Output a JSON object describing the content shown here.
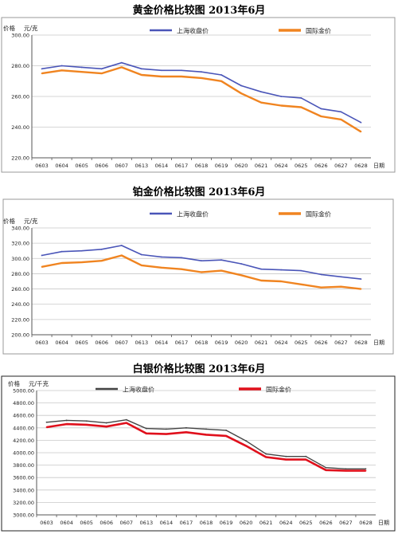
{
  "chart_data": [
    {
      "type": "line",
      "title": "黄金价格比较图 2013年6月",
      "ylabel": "价格",
      "yunit": "元/克",
      "xunit": "日期",
      "ylim": [
        220,
        300
      ],
      "yticks": [
        "220.00",
        "240.00",
        "260.00",
        "280.00",
        "300.00"
      ],
      "yticks_values": [
        220,
        240,
        260,
        280,
        300
      ],
      "categories": [
        "0603",
        "0604",
        "0605",
        "0606",
        "0607",
        "0613",
        "0614",
        "0617",
        "0618",
        "0619",
        "0620",
        "0621",
        "0624",
        "0625",
        "0626",
        "0627",
        "0628"
      ],
      "legend_position": "top",
      "border": "#999999",
      "series": [
        {
          "name": "上海收盘价",
          "color": "#4a55b8",
          "width": 1.6,
          "values": [
            278,
            280,
            279,
            278,
            282,
            278,
            277,
            277,
            276,
            274,
            267,
            263,
            260,
            259,
            252,
            250,
            243
          ]
        },
        {
          "name": "国际金价",
          "color": "#f08420",
          "width": 2.4,
          "values": [
            275,
            277,
            276,
            275,
            279,
            274,
            273,
            273,
            272,
            270,
            262,
            256,
            254,
            253,
            247,
            245,
            237
          ]
        }
      ]
    },
    {
      "type": "line",
      "title": "铂金价格比较图 2013年6月",
      "ylabel": "价格",
      "yunit": "元/克",
      "xunit": "日期",
      "ylim": [
        200,
        340
      ],
      "yticks": [
        "200.00",
        "220.00",
        "240.00",
        "260.00",
        "280.00",
        "300.00",
        "320.00",
        "340.00"
      ],
      "yticks_values": [
        200,
        220,
        240,
        260,
        280,
        300,
        320,
        340
      ],
      "categories": [
        "0603",
        "0604",
        "0605",
        "0606",
        "0607",
        "0613",
        "0614",
        "0617",
        "0618",
        "0619",
        "0620",
        "0621",
        "0624",
        "0625",
        "0626",
        "0627",
        "0628"
      ],
      "legend_position": "top",
      "border": "#999999",
      "series": [
        {
          "name": "上海收盘价",
          "color": "#4a55b8",
          "width": 1.6,
          "values": [
            304,
            309,
            310,
            312,
            317,
            305,
            302,
            301,
            297,
            298,
            293,
            286,
            285,
            284,
            279,
            276,
            273
          ]
        },
        {
          "name": "国际金价",
          "color": "#f08420",
          "width": 2.4,
          "values": [
            289,
            294,
            295,
            297,
            304,
            291,
            288,
            286,
            282,
            284,
            278,
            271,
            270,
            266,
            262,
            263,
            260
          ]
        }
      ]
    },
    {
      "type": "line",
      "title": "白银价格比较图 2013年6月",
      "ylabel": "价格",
      "yunit": "元/千克",
      "xunit": "日期",
      "ylim": [
        3000,
        5000
      ],
      "yticks": [
        "3000.00",
        "3200.00",
        "3400.00",
        "3600.00",
        "3800.00",
        "4000.00",
        "4200.00",
        "4400.00",
        "4600.00",
        "4800.00",
        "5000.00"
      ],
      "yticks_values": [
        3000,
        3200,
        3400,
        3600,
        3800,
        4000,
        4200,
        4400,
        4600,
        4800,
        5000
      ],
      "categories": [
        "0603",
        "0604",
        "0605",
        "0606",
        "0607",
        "0613",
        "0614",
        "0617",
        "0618",
        "0619",
        "0620",
        "0621",
        "0624",
        "0625",
        "0626",
        "0627",
        "0628"
      ],
      "legend_position": "top",
      "border": "#222222",
      "series": [
        {
          "name": "上海收盘价",
          "color": "#444444",
          "width": 1.4,
          "values": [
            4490,
            4520,
            4510,
            4480,
            4530,
            4390,
            4380,
            4400,
            4380,
            4360,
            4190,
            3980,
            3940,
            3940,
            3760,
            3740,
            3740
          ]
        },
        {
          "name": "国际金价",
          "color": "#e0101c",
          "width": 2.6,
          "values": [
            4410,
            4460,
            4450,
            4420,
            4480,
            4310,
            4300,
            4330,
            4290,
            4270,
            4110,
            3930,
            3890,
            3890,
            3720,
            3710,
            3710
          ]
        }
      ]
    }
  ]
}
